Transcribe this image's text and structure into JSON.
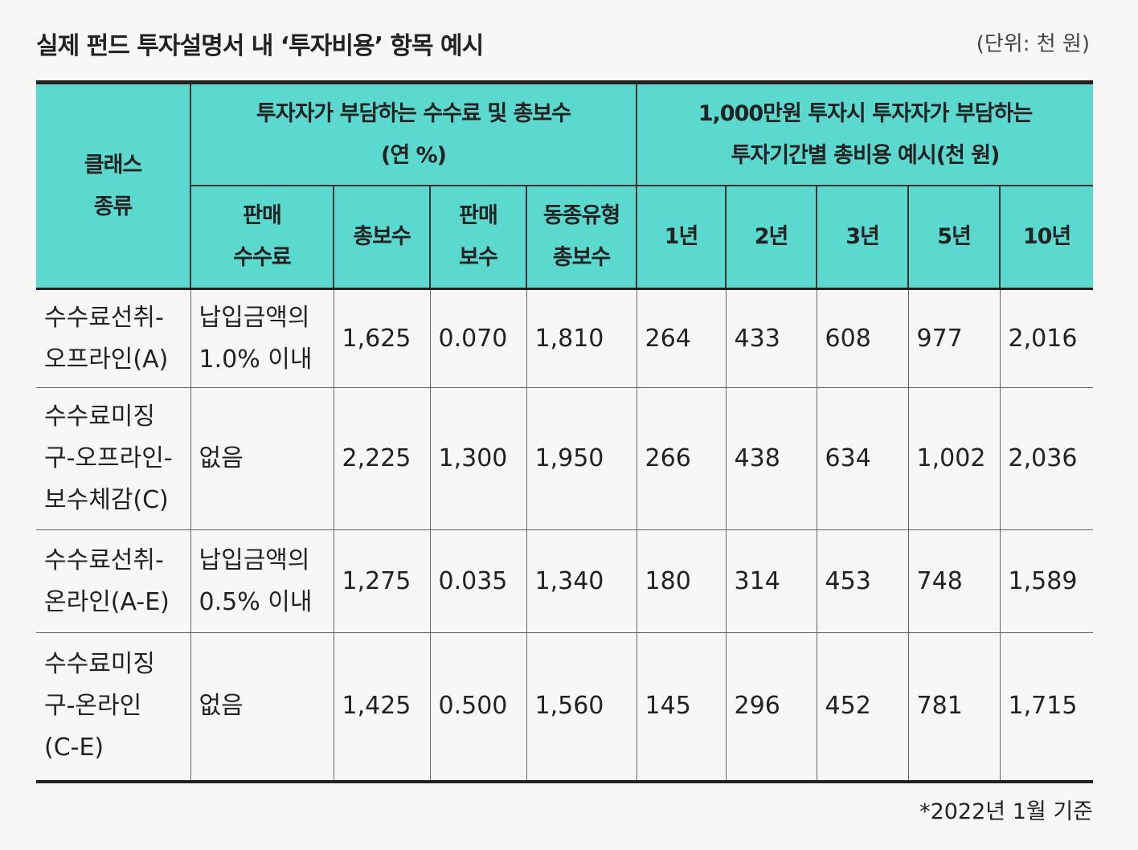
{
  "header": {
    "title": "실제 펀드 투자설명서 내 ‘투자비용’ 항목 예시",
    "unit": "(단위: 천 원)"
  },
  "table": {
    "class_header": [
      "클래스",
      "종류"
    ],
    "group1": [
      "투자자가 부담하는 수수료 및 총보수",
      "(연 %)"
    ],
    "group2": [
      "1,000만원 투자시 투자자가 부담하는",
      "투자기간별 총비용 예시(천 원)"
    ],
    "columns": [
      [
        "판매",
        "수수료"
      ],
      [
        "총보수"
      ],
      [
        "판매",
        "보수"
      ],
      [
        "동종유형",
        "총보수"
      ],
      [
        "1년"
      ],
      [
        "2년"
      ],
      [
        "3년"
      ],
      [
        "5년"
      ],
      [
        "10년"
      ]
    ],
    "rows": [
      {
        "class": [
          "수수료선취-",
          "오프라인(A)"
        ],
        "cells": [
          [
            "납입금액의",
            "1.0% 이내"
          ],
          [
            "1,625"
          ],
          [
            "0.070"
          ],
          [
            "1,810"
          ],
          [
            "264"
          ],
          [
            "433"
          ],
          [
            "608"
          ],
          [
            "977"
          ],
          [
            "2,016"
          ]
        ]
      },
      {
        "class": [
          "수수료미징",
          "구-오프라인-",
          "보수체감(C)"
        ],
        "cells": [
          [
            "없음"
          ],
          [
            "2,225"
          ],
          [
            "1,300"
          ],
          [
            "1,950"
          ],
          [
            "266"
          ],
          [
            "438"
          ],
          [
            "634"
          ],
          [
            "1,002"
          ],
          [
            "2,036"
          ]
        ]
      },
      {
        "class": [
          "수수료선취-",
          "온라인(A-E)"
        ],
        "cells": [
          [
            "납입금액의",
            "0.5% 이내"
          ],
          [
            "1,275"
          ],
          [
            "0.035"
          ],
          [
            "1,340"
          ],
          [
            "180"
          ],
          [
            "314"
          ],
          [
            "453"
          ],
          [
            "748"
          ],
          [
            "1,589"
          ]
        ]
      },
      {
        "class": [
          "수수료미징",
          "구-온라인",
          "(C-E)"
        ],
        "cells": [
          [
            "없음"
          ],
          [
            "1,425"
          ],
          [
            "0.500"
          ],
          [
            "1,560"
          ],
          [
            "145"
          ],
          [
            "296"
          ],
          [
            "452"
          ],
          [
            "781"
          ],
          [
            "1,715"
          ]
        ]
      }
    ]
  },
  "footer": {
    "note": "*2022년 1월 기준"
  }
}
